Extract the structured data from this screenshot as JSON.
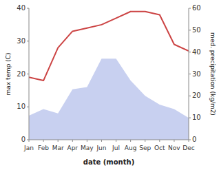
{
  "chart_data": {
    "type": "line",
    "categories": [
      "Jan",
      "Feb",
      "Mar",
      "Apr",
      "May",
      "Jun",
      "Jul",
      "Aug",
      "Sep",
      "Oct",
      "Nov",
      "Dec"
    ],
    "series": [
      {
        "type": "area",
        "axis": "y2",
        "color": "#c8d0f0",
        "values": [
          11,
          14,
          12,
          23,
          24,
          37,
          37,
          27,
          20,
          16,
          14,
          10
        ]
      },
      {
        "type": "line",
        "color": "#cc4444",
        "values": [
          19,
          18,
          28,
          33,
          34,
          35,
          37,
          39,
          39,
          38,
          29,
          27
        ]
      }
    ],
    "x_label": "date (month)",
    "y_label": "max temp (C)",
    "y2_label": "med. precipitation (kg/m2)",
    "ylim": [
      0,
      40
    ],
    "yticks": [
      0,
      10,
      20,
      30,
      40
    ],
    "y2lim": [
      0,
      60
    ],
    "y2ticks": [
      0,
      10,
      20,
      30,
      40,
      50,
      60
    ],
    "grid": false
  }
}
